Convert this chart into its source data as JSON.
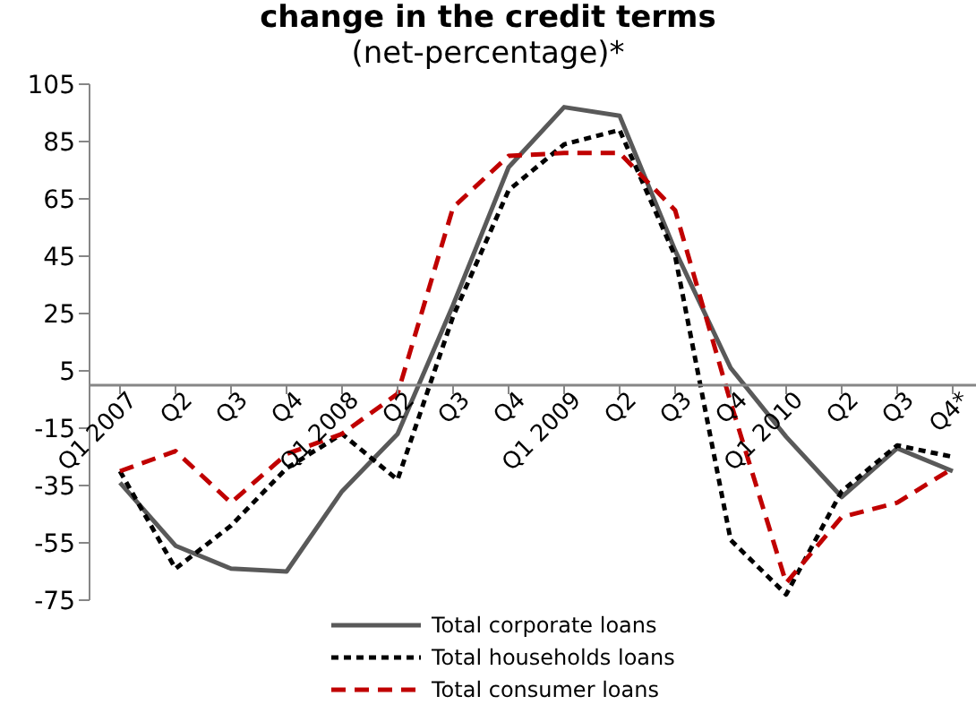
{
  "chart_data": {
    "type": "line",
    "title": "change in the credit terms",
    "subtitle": "(net-percentage)*",
    "categories": [
      "Q1 2007",
      "Q2",
      "Q3",
      "Q4",
      "Q1 2008",
      "Q2",
      "Q3",
      "Q4",
      "Q1 2009",
      "Q2",
      "Q3",
      "Q4",
      "Q1 2010",
      "Q2",
      "Q3",
      "Q4*"
    ],
    "series": [
      {
        "name": "Total corporate loans",
        "color": "#595959",
        "line_style": "solid",
        "values": [
          -34,
          -56,
          -64,
          -65,
          -37,
          -17,
          28,
          76,
          97,
          94,
          47,
          6,
          -18,
          -39,
          -22,
          -30
        ]
      },
      {
        "name": "Total households loans",
        "color": "#000000",
        "line_style": "dotted",
        "values": [
          -30,
          -64,
          -49,
          -29,
          -17,
          -33,
          24,
          68,
          84,
          89,
          45,
          -54,
          -73,
          -37,
          -21,
          -25
        ]
      },
      {
        "name": "Total consumer loans",
        "color": "#c00000",
        "line_style": "dashed",
        "values": [
          -30,
          -23,
          -41,
          -24,
          -17,
          -3,
          62,
          80,
          81,
          81,
          61,
          -6,
          -69,
          -46,
          -41,
          -29
        ]
      }
    ],
    "ylim": [
      -75,
      105
    ],
    "yticks": [
      -75,
      -55,
      -35,
      -15,
      5,
      25,
      45,
      65,
      85,
      105
    ],
    "grid": false,
    "legend": "bottom",
    "marker": "none"
  }
}
